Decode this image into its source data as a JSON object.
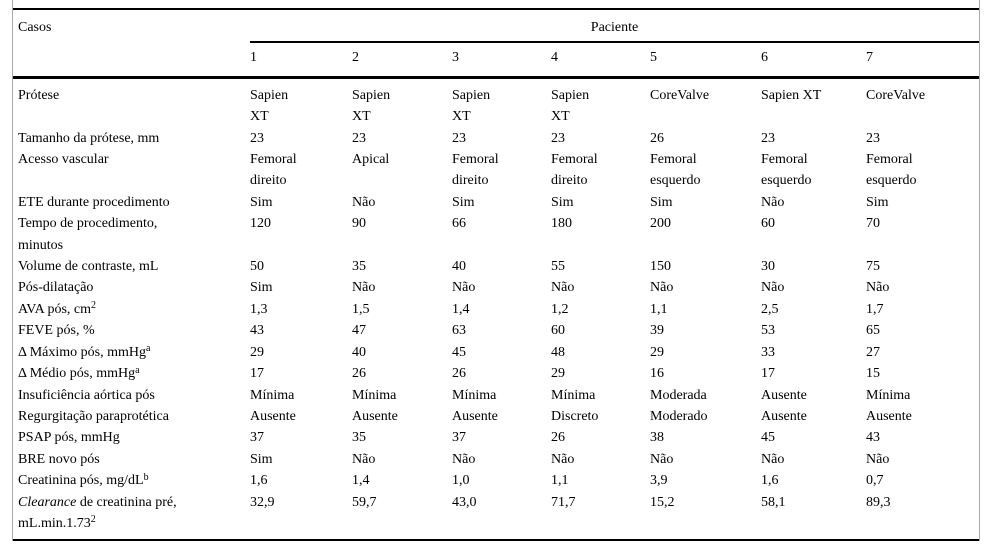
{
  "table": {
    "corner_label": "Casos",
    "group_header": "Paciente",
    "patient_columns": [
      "1",
      "2",
      "3",
      "4",
      "5",
      "6",
      "7"
    ],
    "rows": [
      {
        "label": [
          {
            "t": "Prótese"
          }
        ],
        "values": [
          "Sapien\nXT",
          "Sapien\nXT",
          "Sapien\nXT",
          "Sapien\nXT",
          "CoreValve",
          "Sapien XT",
          "CoreValve"
        ]
      },
      {
        "label": [
          {
            "t": "Tamanho da prótese, mm"
          }
        ],
        "values": [
          "23",
          "23",
          "23",
          "23",
          "26",
          "23",
          "23"
        ]
      },
      {
        "label": [
          {
            "t": "Acesso vascular"
          }
        ],
        "values": [
          "Femoral\ndireito",
          "Apical",
          "Femoral\ndireito",
          "Femoral\ndireito",
          "Femoral\nesquerdo",
          "Femoral\nesquerdo",
          "Femoral\nesquerdo"
        ]
      },
      {
        "label": [
          {
            "t": "ETE durante procedimento"
          }
        ],
        "values": [
          "Sim",
          "Não",
          "Sim",
          "Sim",
          "Sim",
          "Não",
          "Sim"
        ]
      },
      {
        "label": [
          {
            "t": "Tempo de procedimento,\nminutos"
          }
        ],
        "values": [
          "120",
          "90",
          "66",
          "180",
          "200",
          "60",
          "70"
        ]
      },
      {
        "label": [
          {
            "t": "Volume de contraste, mL"
          }
        ],
        "values": [
          "50",
          "35",
          "40",
          "55",
          "150",
          "30",
          "75"
        ]
      },
      {
        "label": [
          {
            "t": "Pós-dilatação"
          }
        ],
        "values": [
          "Sim",
          "Não",
          "Não",
          "Não",
          "Não",
          "Não",
          "Não"
        ]
      },
      {
        "label": [
          {
            "t": "AVA pós, cm"
          },
          {
            "t": "2",
            "sup": true
          }
        ],
        "values": [
          "1,3",
          "1,5",
          "1,4",
          "1,2",
          "1,1",
          "2,5",
          "1,7"
        ]
      },
      {
        "label": [
          {
            "t": "FEVE pós, %"
          }
        ],
        "values": [
          "43",
          "47",
          "63",
          "60",
          "39",
          "53",
          "65"
        ]
      },
      {
        "label": [
          {
            "t": "Δ Máximo pós, mmHg"
          },
          {
            "t": "a",
            "sup": true
          }
        ],
        "values": [
          "29",
          "40",
          "45",
          "48",
          "29",
          "33",
          "27"
        ]
      },
      {
        "label": [
          {
            "t": "Δ Médio pós, mmHg"
          },
          {
            "t": "a",
            "sup": true
          }
        ],
        "values": [
          "17",
          "26",
          "26",
          "29",
          "16",
          "17",
          "15"
        ]
      },
      {
        "label": [
          {
            "t": "Insuficiência aórtica pós"
          }
        ],
        "values": [
          "Mínima",
          "Mínima",
          "Mínima",
          "Mínima",
          "Moderada",
          "Ausente",
          "Mínima"
        ]
      },
      {
        "label": [
          {
            "t": "Regurgitação paraprotética"
          }
        ],
        "values": [
          "Ausente",
          "Ausente",
          "Ausente",
          "Discreto",
          "Moderado",
          "Ausente",
          "Ausente"
        ]
      },
      {
        "label": [
          {
            "t": "PSAP pós, mmHg"
          }
        ],
        "values": [
          "37",
          "35",
          "37",
          "26",
          "38",
          "45",
          "43"
        ]
      },
      {
        "label": [
          {
            "t": "BRE novo pós"
          }
        ],
        "values": [
          "Sim",
          "Não",
          "Não",
          "Não",
          "Não",
          "Não",
          "Não"
        ]
      },
      {
        "label": [
          {
            "t": "Creatinina pós, mg/dL"
          },
          {
            "t": "b",
            "sup": true
          }
        ],
        "values": [
          "1,6",
          "1,4",
          "1,0",
          "1,1",
          "3,9",
          "1,6",
          "0,7"
        ]
      },
      {
        "label": [
          {
            "t": "Clearance",
            "i": true
          },
          {
            "t": " de creatinina pré,\nmL.min.1.73"
          },
          {
            "t": "2",
            "sup": true
          }
        ],
        "values": [
          "32,9",
          "59,7",
          "43,0",
          "71,7",
          "15,2",
          "58,1",
          "89,3"
        ]
      }
    ]
  },
  "colors": {
    "rule": "#000000",
    "frame": "#a9a9a9",
    "text": "#000000",
    "background": "#ffffff"
  }
}
